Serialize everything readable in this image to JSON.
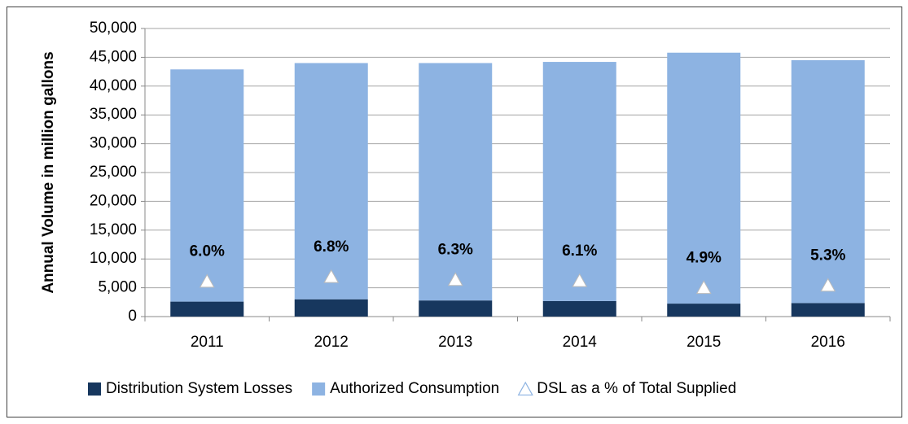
{
  "chart_data": {
    "type": "bar",
    "stacked": true,
    "y_label": "Annual Volume in million gallons",
    "categories": [
      "2011",
      "2012",
      "2013",
      "2014",
      "2015",
      "2016"
    ],
    "series": [
      {
        "name": "Distribution System Losses",
        "color": "#17375e",
        "values": [
          2600,
          3000,
          2800,
          2700,
          2250,
          2350
        ]
      },
      {
        "name": "Authorized Consumption",
        "color": "#8db3e2",
        "values": [
          40300,
          41000,
          41200,
          41500,
          43550,
          42150
        ]
      },
      {
        "name": "DSL as a % of Total Supplied",
        "color": "#ffffff",
        "marker": "triangle",
        "axis": "y2",
        "values": [
          6.0,
          6.8,
          6.3,
          6.1,
          4.9,
          5.3
        ],
        "value_labels": [
          "6.0%",
          "6.8%",
          "6.3%",
          "6.1%",
          "4.9%",
          "5.3%"
        ]
      }
    ],
    "ylim": [
      0,
      50000
    ],
    "yticks": [
      0,
      {
        "value": 5000,
        "label": "5,000"
      },
      {
        "value": 10000,
        "label": "10,000"
      },
      {
        "value": 15000,
        "label": "15,000"
      },
      {
        "value": 20000,
        "label": "20,000"
      },
      {
        "value": 25000,
        "label": "25,000"
      },
      {
        "value": 30000,
        "label": "30,000"
      },
      {
        "value": 35000,
        "label": "35,000"
      },
      {
        "value": 40000,
        "label": "40,000"
      },
      {
        "value": 45000,
        "label": "45,000"
      },
      {
        "value": 50000,
        "label": "50,000"
      }
    ],
    "y2lim": [
      0,
      50
    ],
    "grid": true,
    "legend": "bottom"
  }
}
